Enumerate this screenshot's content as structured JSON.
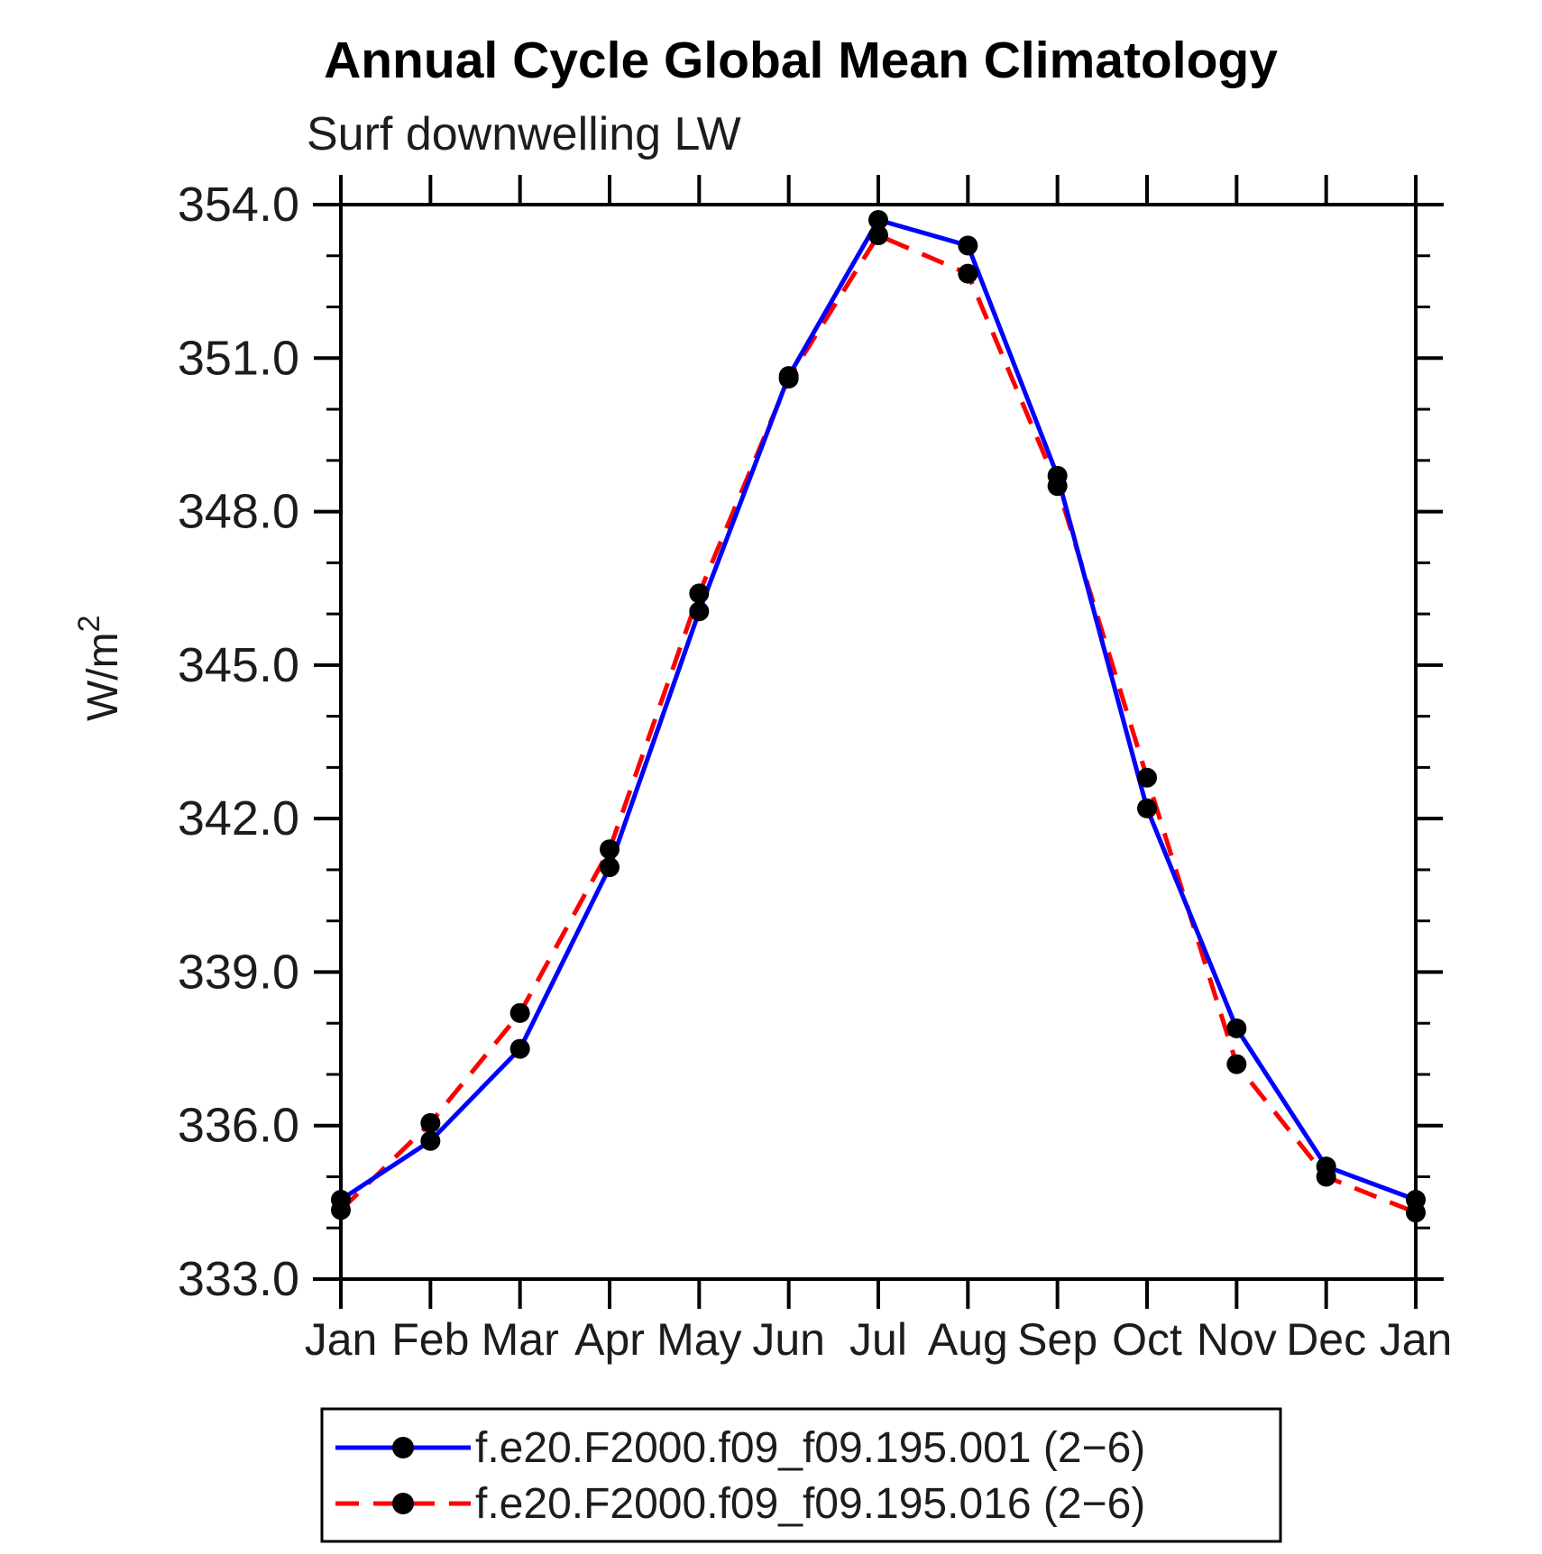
{
  "chart_data": {
    "type": "line",
    "title": "Annual Cycle Global Mean Climatology",
    "subtitle": "Surf downwelling LW",
    "ylabel": "W/m²",
    "ylabel_base": "W/m",
    "ylabel_exponent": "2",
    "xlabel": "",
    "ylim": [
      333.0,
      354.0
    ],
    "y_major_step": 3.0,
    "y_minor_step": 1.0,
    "y_tick_labels": [
      "333.0",
      "336.0",
      "339.0",
      "342.0",
      "345.0",
      "348.0",
      "351.0",
      "354.0"
    ],
    "categories": [
      "Jan",
      "Feb",
      "Mar",
      "Apr",
      "May",
      "Jun",
      "Jul",
      "Aug",
      "Sep",
      "Oct",
      "Nov",
      "Dec",
      "Jan"
    ],
    "grid": false,
    "legend_position": "bottom",
    "axis_color": "#000000",
    "series": [
      {
        "name": "f.e20.F2000.f09_f09.195.001 (2−6)",
        "color": "#0000ff",
        "line_style": "solid",
        "marker": "filled-circle",
        "marker_color": "#000000",
        "values": [
          334.55,
          335.7,
          337.5,
          341.05,
          346.05,
          350.65,
          353.7,
          353.2,
          348.7,
          342.2,
          337.9,
          335.2,
          334.55
        ]
      },
      {
        "name": "f.e20.F2000.f09_f09.195.016 (2−6)",
        "color": "#ff0000",
        "line_style": "dashed",
        "marker": "filled-circle",
        "marker_color": "#000000",
        "values": [
          334.35,
          336.05,
          338.2,
          341.4,
          346.4,
          350.6,
          353.4,
          352.65,
          348.5,
          342.8,
          337.2,
          335.0,
          334.3
        ]
      }
    ]
  }
}
